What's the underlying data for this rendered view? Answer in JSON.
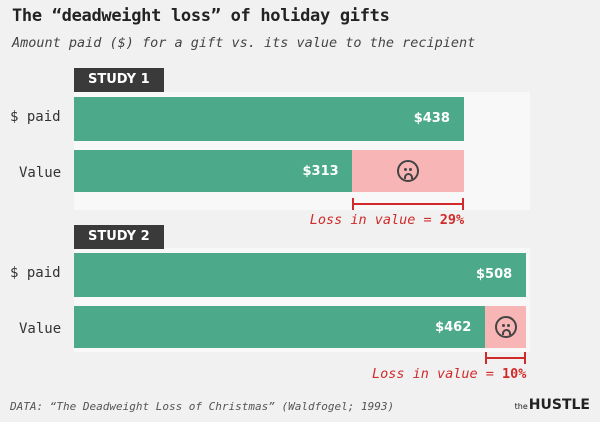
{
  "title": "The “deadweight loss” of holiday gifts",
  "subtitle": "Amount paid ($) for a gift vs. its value to the recipient",
  "footer": "DATA: “The Deadweight Loss of Christmas” (Waldfogel; 1993)",
  "brand": {
    "prefix": "the",
    "name": "HUSTLE"
  },
  "chart_data": {
    "type": "bar",
    "orientation": "horizontal",
    "xlim": [
      0,
      508
    ],
    "studies": [
      {
        "label": "STUDY 1",
        "rows": [
          {
            "label": "$ paid",
            "value": 438,
            "value_label": "$438"
          },
          {
            "label": "Value",
            "value": 313,
            "value_label": "$313"
          }
        ],
        "loss_text": "Loss in value = ",
        "loss_pct": "29%"
      },
      {
        "label": "STUDY 2",
        "rows": [
          {
            "label": "$ paid",
            "value": 508,
            "value_label": "$508"
          },
          {
            "label": "Value",
            "value": 462,
            "value_label": "$462"
          }
        ],
        "loss_text": "Loss in value = ",
        "loss_pct": "10%"
      }
    ],
    "colors": {
      "bar": "#4caa8a",
      "loss": "#f7b5b5",
      "loss_text": "#d02a2a",
      "label_bg": "#3a3a3a"
    }
  }
}
